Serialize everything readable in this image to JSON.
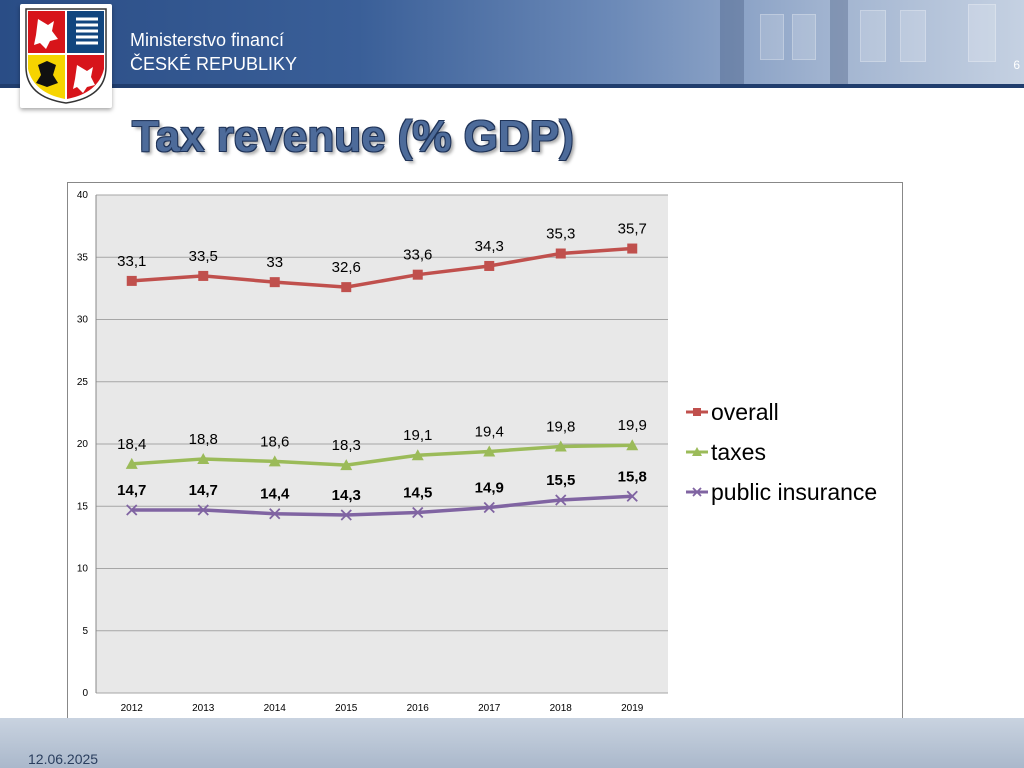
{
  "header": {
    "ministry_line1": "Ministerstvo financí",
    "ministry_line2": "ČESKÉ REPUBLIKY",
    "page_number": "6"
  },
  "slide": {
    "title": "Tax revenue (% GDP)"
  },
  "footer": {
    "date": "12.06.2025"
  },
  "colors": {
    "overall": "#c0504d",
    "taxes": "#9bbb59",
    "public_insurance": "#8064a2",
    "plot_background": "#e8e8e8",
    "gridline": "#a6a6a6",
    "title_fill": "#4d6b9a"
  },
  "chart_data": {
    "type": "line",
    "title": "",
    "xlabel": "",
    "ylabel": "",
    "categories": [
      "2012",
      "2013",
      "2014",
      "2015",
      "2016",
      "2017",
      "2018",
      "2019"
    ],
    "ylim": [
      0,
      40
    ],
    "yticks": [
      "0",
      "5",
      "10",
      "15",
      "20",
      "25",
      "30",
      "35",
      "40"
    ],
    "grid": true,
    "legend_position": "right",
    "series": [
      {
        "name": "overall",
        "marker": "square",
        "values": [
          33.1,
          33.5,
          33,
          32.6,
          33.6,
          34.3,
          35.3,
          35.7
        ],
        "labels": [
          "33,1",
          "33,5",
          "33",
          "32,6",
          "33,6",
          "34,3",
          "35,3",
          "35,7"
        ],
        "label_bold": false
      },
      {
        "name": "taxes",
        "marker": "triangle",
        "values": [
          18.4,
          18.8,
          18.6,
          18.3,
          19.1,
          19.4,
          19.8,
          19.9
        ],
        "labels": [
          "18,4",
          "18,8",
          "18,6",
          "18,3",
          "19,1",
          "19,4",
          "19,8",
          "19,9"
        ],
        "label_bold": false
      },
      {
        "name": "public insurance",
        "marker": "x",
        "values": [
          14.7,
          14.7,
          14.4,
          14.3,
          14.5,
          14.9,
          15.5,
          15.8
        ],
        "labels": [
          "14,7",
          "14,7",
          "14,4",
          "14,3",
          "14,5",
          "14,9",
          "15,5",
          "15,8"
        ],
        "label_bold": true
      }
    ]
  }
}
